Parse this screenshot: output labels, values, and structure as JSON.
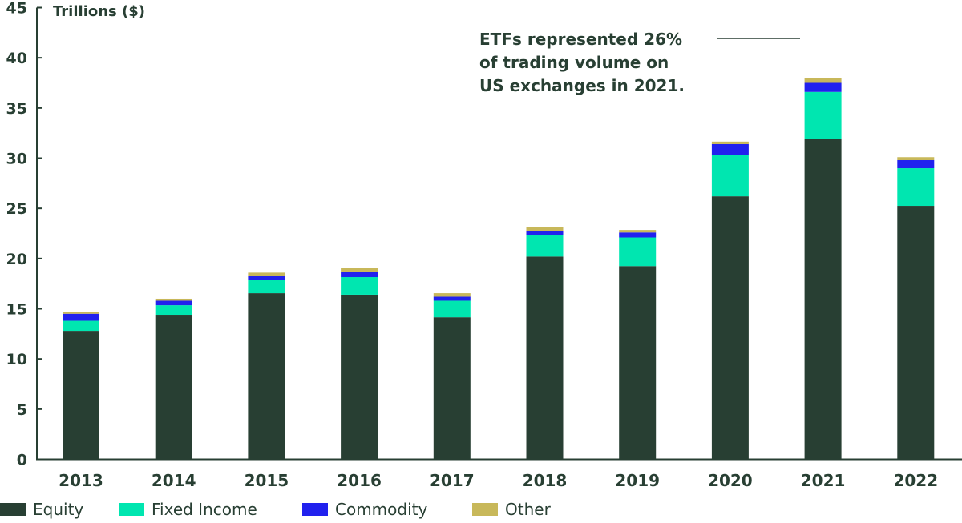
{
  "chart_data": {
    "type": "bar",
    "stacked": true,
    "title": "",
    "ylabel": "Trillions ($)",
    "xlabel": "",
    "ylim": [
      0,
      45
    ],
    "yticks": [
      0,
      5,
      10,
      15,
      20,
      25,
      30,
      35,
      40,
      45
    ],
    "grid": false,
    "categories": [
      "2013",
      "2014",
      "2015",
      "2016",
      "2017",
      "2018",
      "2019",
      "2020",
      "2021",
      "2022"
    ],
    "series": [
      {
        "name": "Equity",
        "color": "#283f33",
        "values": [
          12.8,
          14.4,
          16.55,
          16.4,
          14.15,
          20.2,
          19.25,
          26.2,
          31.95,
          25.25
        ]
      },
      {
        "name": "Fixed Income",
        "color": "#00e6b0",
        "values": [
          1.0,
          0.95,
          1.3,
          1.75,
          1.65,
          2.1,
          2.85,
          4.1,
          4.65,
          3.75
        ]
      },
      {
        "name": "Commodity",
        "color": "#2121ee",
        "values": [
          0.7,
          0.45,
          0.45,
          0.55,
          0.4,
          0.4,
          0.5,
          1.1,
          0.9,
          0.8
        ]
      },
      {
        "name": "Other",
        "color": "#c8b85a",
        "values": [
          0.15,
          0.2,
          0.3,
          0.35,
          0.35,
          0.4,
          0.25,
          0.25,
          0.45,
          0.3
        ]
      }
    ],
    "legend_position": "bottom-left",
    "annotation": {
      "lines": [
        "ETFs represented 26%",
        "of trading volume on",
        "US exchanges in 2021."
      ],
      "points_to": "2021"
    }
  }
}
